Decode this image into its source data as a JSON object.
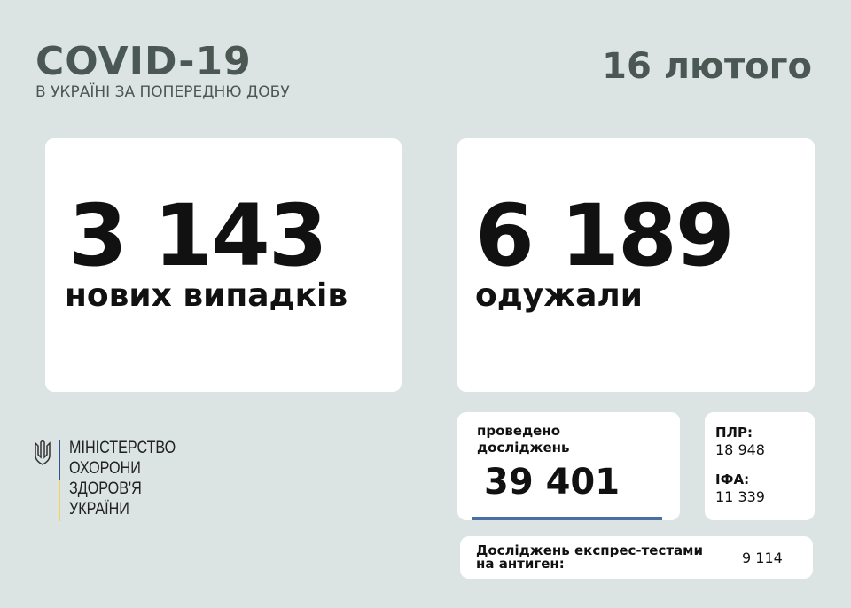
{
  "header": {
    "title": "COVID-19",
    "subtitle": "В УКРАЇНІ ЗА ПОПЕРЕДНЮ ДОБУ",
    "date": "16 лютого"
  },
  "new_cases": {
    "value": "3 143",
    "label": "нових випадків"
  },
  "recovered": {
    "value": "6 189",
    "label": "одужали"
  },
  "tests": {
    "label_line1": "проведено",
    "label_line2": "досліджень",
    "value": "39 401"
  },
  "breakdown": {
    "pcr_label": "ПЛР:",
    "pcr_value": "18 948",
    "ifa_label": "ІФА:",
    "ifa_value": "11 339"
  },
  "antigen": {
    "label_line1": "Досліджень експрес-тестами",
    "label_line2": "на антиген:",
    "value": "9 114"
  },
  "ministry": {
    "lines": [
      "МІНІСТЕРСТВО",
      "ОХОРОНИ",
      "ЗДОРОВ'Я",
      "УКРАЇНИ"
    ]
  },
  "colors": {
    "background": "#dbe4e2",
    "title": "#4b5753",
    "accent_blue": "#4a6fa5",
    "flag_yellow": "#f2d45c"
  }
}
